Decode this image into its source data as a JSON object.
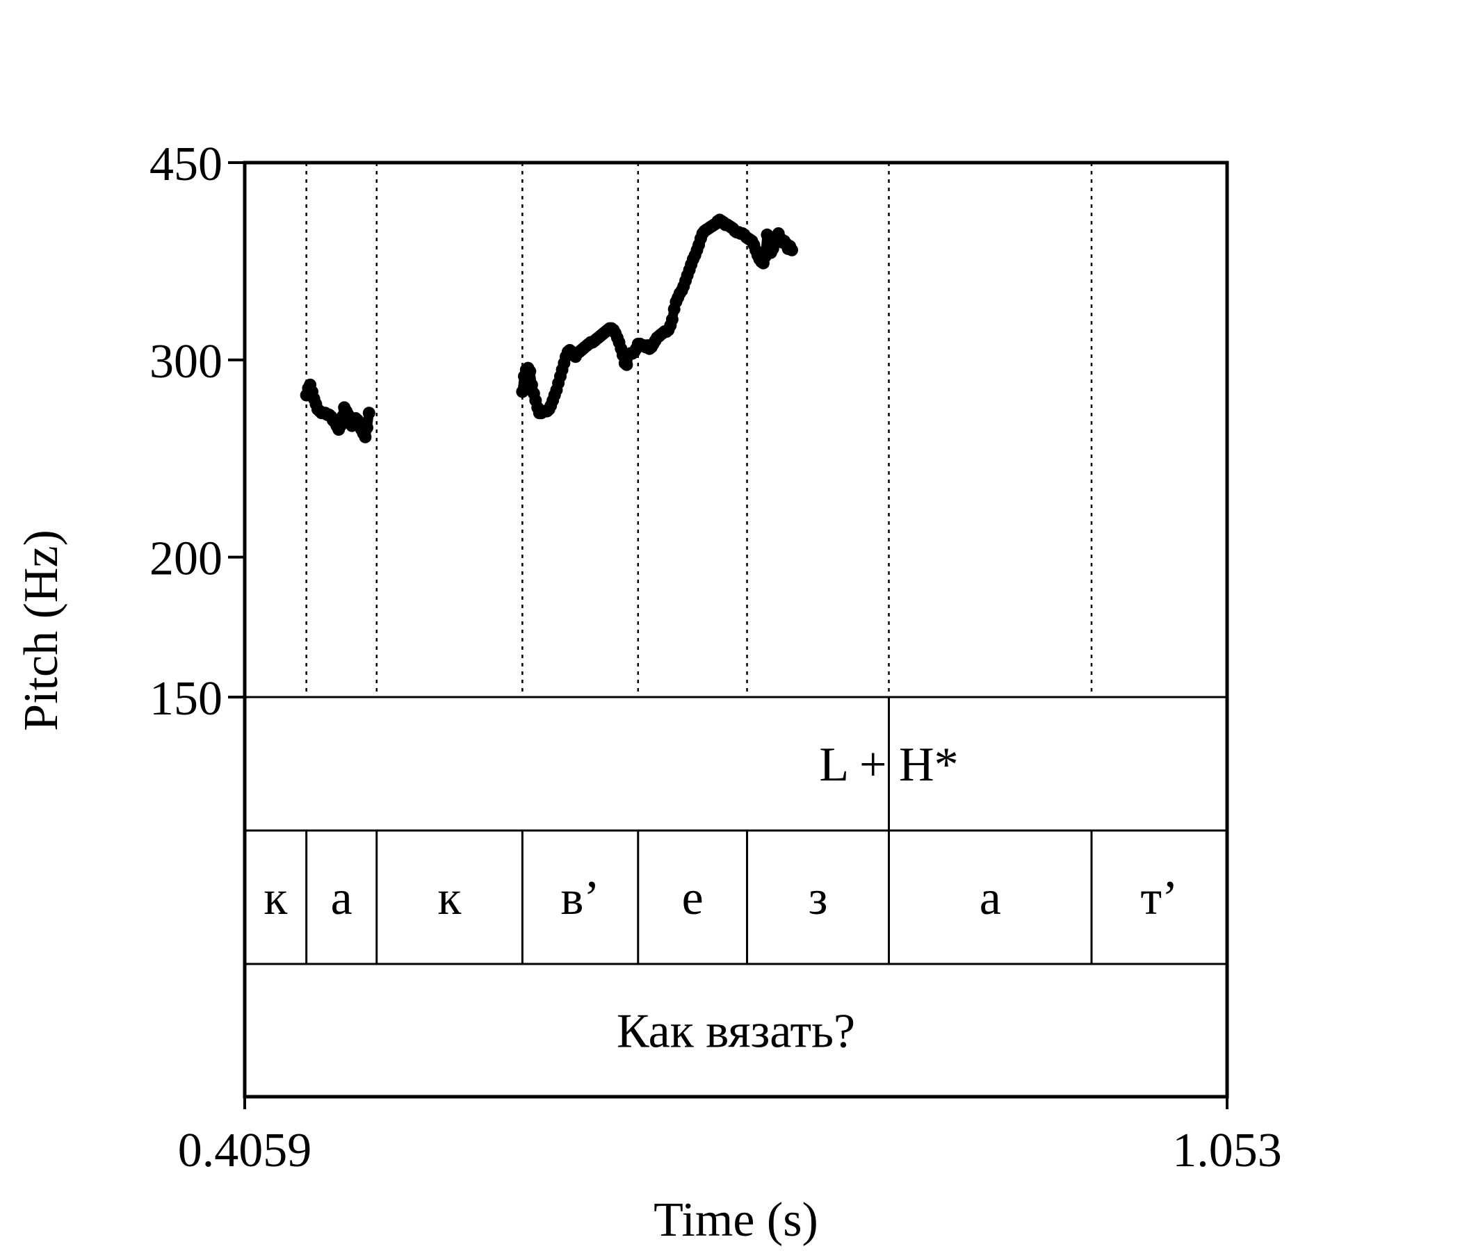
{
  "chart_data": {
    "type": "scatter",
    "xlabel": "Time (s)",
    "ylabel": "Pitch (Hz)",
    "xlim": [
      0.4059,
      1.053
    ],
    "x_tick_labels": [
      "0.4059",
      "1.053"
    ],
    "ylim": [
      150,
      450
    ],
    "y_scale": "log",
    "y_ticks": [
      150,
      200,
      300,
      450
    ],
    "y_tick_labels": [
      "150",
      "200",
      "300",
      "450"
    ],
    "grid": false,
    "segment_boundaries": [
      0.4465,
      0.4928,
      0.5888,
      0.665,
      0.7368,
      0.8302,
      0.9637
    ],
    "tiers": {
      "tone": {
        "boundaries": [
          0.8302
        ],
        "labels": [
          {
            "text": "L + H*",
            "x": 0.8302
          }
        ]
      },
      "segments": [
        {
          "text": "к",
          "start": 0.4059,
          "end": 0.4465
        },
        {
          "text": "а",
          "start": 0.4465,
          "end": 0.4928
        },
        {
          "text": "к",
          "start": 0.4928,
          "end": 0.5888
        },
        {
          "text": "в’",
          "start": 0.5888,
          "end": 0.665
        },
        {
          "text": "е",
          "start": 0.665,
          "end": 0.7368
        },
        {
          "text": "з",
          "start": 0.7368,
          "end": 0.8302
        },
        {
          "text": "а",
          "start": 0.8302,
          "end": 0.9637
        },
        {
          "text": "т’",
          "start": 0.9637,
          "end": 1.053
        }
      ],
      "sentence": {
        "text": "Как вязать?"
      }
    },
    "series": [
      {
        "points": [
          [
            0.4465,
            279
          ],
          [
            0.4478,
            283
          ],
          [
            0.449,
            285
          ],
          [
            0.4503,
            281
          ],
          [
            0.4515,
            277
          ],
          [
            0.4528,
            274
          ],
          [
            0.454,
            271
          ],
          [
            0.4553,
            270
          ],
          [
            0.4565,
            269
          ],
          [
            0.4578,
            269
          ],
          [
            0.459,
            269
          ],
          [
            0.4603,
            268
          ],
          [
            0.4615,
            268
          ],
          [
            0.4628,
            267
          ],
          [
            0.464,
            265
          ],
          [
            0.4653,
            264
          ],
          [
            0.4665,
            262
          ],
          [
            0.4678,
            260
          ],
          [
            0.469,
            262
          ],
          [
            0.4703,
            267
          ],
          [
            0.4715,
            272
          ],
          [
            0.4728,
            270
          ],
          [
            0.474,
            268
          ],
          [
            0.4753,
            264
          ],
          [
            0.4765,
            262
          ],
          [
            0.4778,
            263
          ],
          [
            0.479,
            266
          ],
          [
            0.4803,
            265
          ],
          [
            0.4815,
            262
          ],
          [
            0.4828,
            260
          ],
          [
            0.484,
            258
          ],
          [
            0.4853,
            256
          ],
          [
            0.4865,
            261
          ],
          [
            0.4878,
            269
          ]
        ]
      },
      {
        "points": [
          [
            0.5888,
            281
          ],
          [
            0.59,
            290
          ],
          [
            0.5913,
            294
          ],
          [
            0.5925,
            295
          ],
          [
            0.5938,
            293
          ],
          [
            0.595,
            285
          ],
          [
            0.5963,
            280
          ],
          [
            0.5975,
            276
          ],
          [
            0.5988,
            272
          ],
          [
            0.6,
            269
          ],
          [
            0.6013,
            269
          ],
          [
            0.6025,
            270
          ],
          [
            0.6038,
            270
          ],
          [
            0.605,
            270
          ],
          [
            0.6063,
            271
          ],
          [
            0.6075,
            273
          ],
          [
            0.6088,
            276
          ],
          [
            0.61,
            279
          ],
          [
            0.6113,
            282
          ],
          [
            0.6125,
            286
          ],
          [
            0.6138,
            290
          ],
          [
            0.615,
            294
          ],
          [
            0.6163,
            298
          ],
          [
            0.6175,
            302
          ],
          [
            0.6188,
            305
          ],
          [
            0.62,
            306
          ],
          [
            0.6213,
            305
          ],
          [
            0.6225,
            303
          ],
          [
            0.6238,
            302
          ],
          [
            0.625,
            304
          ],
          [
            0.6263,
            305
          ],
          [
            0.6275,
            306
          ],
          [
            0.6288,
            307
          ],
          [
            0.63,
            308
          ],
          [
            0.6313,
            309
          ],
          [
            0.6325,
            310
          ],
          [
            0.6338,
            311
          ],
          [
            0.635,
            311
          ],
          [
            0.6363,
            312
          ],
          [
            0.6375,
            313
          ],
          [
            0.6388,
            314
          ],
          [
            0.64,
            315
          ],
          [
            0.6413,
            316
          ],
          [
            0.6425,
            317
          ],
          [
            0.6438,
            318
          ],
          [
            0.645,
            319
          ],
          [
            0.6463,
            320
          ],
          [
            0.6475,
            320
          ],
          [
            0.6488,
            319
          ],
          [
            0.65,
            317
          ],
          [
            0.6513,
            314
          ],
          [
            0.6525,
            311
          ],
          [
            0.6538,
            307
          ],
          [
            0.655,
            303
          ],
          [
            0.6563,
            298
          ],
          [
            0.6575,
            297
          ],
          [
            0.6588,
            303
          ],
          [
            0.66,
            304
          ],
          [
            0.6613,
            304
          ],
          [
            0.6625,
            305
          ],
          [
            0.6638,
            307
          ],
          [
            0.665,
            310
          ],
          [
            0.6663,
            310
          ],
          [
            0.6675,
            309
          ],
          [
            0.6688,
            309
          ],
          [
            0.67,
            308
          ],
          [
            0.6713,
            309
          ],
          [
            0.6725,
            307
          ],
          [
            0.6738,
            308
          ],
          [
            0.675,
            310
          ],
          [
            0.6763,
            312
          ],
          [
            0.6775,
            314
          ],
          [
            0.6788,
            315
          ],
          [
            0.68,
            316
          ],
          [
            0.6813,
            317
          ],
          [
            0.6825,
            318
          ],
          [
            0.6838,
            318
          ],
          [
            0.685,
            319
          ],
          [
            0.6863,
            322
          ],
          [
            0.6875,
            326
          ],
          [
            0.6888,
            333
          ],
          [
            0.69,
            338
          ],
          [
            0.6913,
            341
          ],
          [
            0.6925,
            344
          ],
          [
            0.6938,
            346
          ],
          [
            0.695,
            349
          ],
          [
            0.6963,
            353
          ],
          [
            0.6975,
            357
          ],
          [
            0.6988,
            361
          ],
          [
            0.7,
            365
          ],
          [
            0.7013,
            369
          ],
          [
            0.7025,
            372
          ],
          [
            0.7038,
            376
          ],
          [
            0.705,
            380
          ],
          [
            0.7063,
            385
          ],
          [
            0.7075,
            389
          ],
          [
            0.7088,
            391
          ],
          [
            0.71,
            392
          ],
          [
            0.7113,
            393
          ],
          [
            0.7125,
            394
          ],
          [
            0.7138,
            395
          ],
          [
            0.715,
            396
          ],
          [
            0.7163,
            397
          ],
          [
            0.7175,
            399
          ],
          [
            0.7188,
            400
          ],
          [
            0.72,
            399
          ],
          [
            0.7213,
            398
          ],
          [
            0.7225,
            396
          ],
          [
            0.7238,
            396
          ],
          [
            0.725,
            395
          ],
          [
            0.7263,
            394
          ],
          [
            0.7275,
            393
          ],
          [
            0.7288,
            391
          ],
          [
            0.73,
            390
          ],
          [
            0.7313,
            390
          ],
          [
            0.7325,
            389
          ],
          [
            0.7338,
            389
          ],
          [
            0.735,
            388
          ],
          [
            0.7363,
            386
          ],
          [
            0.7375,
            385
          ],
          [
            0.7388,
            384
          ],
          [
            0.74,
            383
          ],
          [
            0.7413,
            380
          ],
          [
            0.7425,
            376
          ],
          [
            0.7438,
            372
          ],
          [
            0.745,
            369
          ],
          [
            0.7463,
            367
          ],
          [
            0.7475,
            366
          ],
          [
            0.7488,
            371
          ],
          [
            0.75,
            388
          ],
          [
            0.7513,
            380
          ],
          [
            0.7525,
            374
          ],
          [
            0.7538,
            377
          ],
          [
            0.755,
            381
          ],
          [
            0.7563,
            386
          ],
          [
            0.7575,
            389
          ],
          [
            0.7588,
            385
          ],
          [
            0.76,
            382
          ],
          [
            0.7613,
            383
          ],
          [
            0.7625,
            381
          ],
          [
            0.7638,
            377
          ],
          [
            0.765,
            379
          ],
          [
            0.7663,
            376
          ]
        ]
      }
    ]
  }
}
